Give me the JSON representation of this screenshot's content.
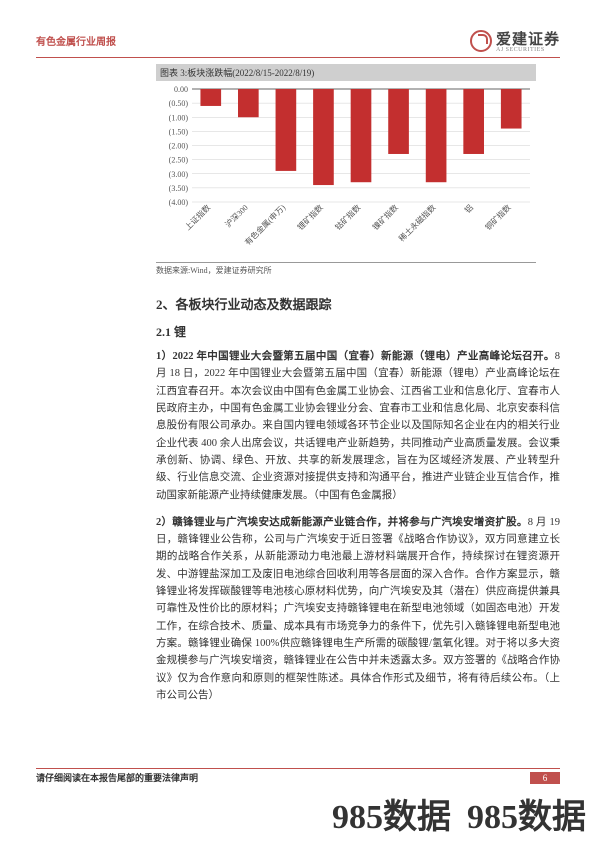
{
  "header": {
    "left": "有色金属行业周报",
    "logo_cn": "爱建证券",
    "logo_en": "AJ SECURITIES"
  },
  "chart": {
    "type": "bar",
    "title": "图表 3:板块涨跌幅(2022/8/15-2022/8/19)",
    "source": "数据来源:Wind，爱建证券研究所",
    "ylim": [
      -4.0,
      0.0
    ],
    "ytick_step": 0.5,
    "ylabels": [
      "0.00",
      "(0.50)",
      "(1.00)",
      "(1.50)",
      "(2.00)",
      "(2.50)",
      "(3.00)",
      "(3.50)",
      "(4.00)"
    ],
    "categories": [
      "上证指数",
      "沪深300",
      "有色金属(申万)",
      "锂矿指数",
      "钴矿指数",
      "镍矿指数",
      "稀土永磁指数",
      "铝",
      "铜矿指数"
    ],
    "values": [
      -0.6,
      -1.0,
      -2.9,
      -3.4,
      -3.3,
      -2.3,
      -3.3,
      -2.3,
      -1.4
    ],
    "bar_color": "#c32f2f",
    "grid_color": "#cfcfcf",
    "axis_color": "#666666",
    "label_fontsize": 8,
    "tick_fontsize": 8,
    "background_color": "#ffffff",
    "bar_width_ratio": 0.55
  },
  "sections": {
    "h2": "2、各板块行业动态及数据跟踪",
    "h21": "2.1 锂",
    "p1_lead": "1）2022 年中国锂业大会暨第五届中国（宜春）新能源（锂电）产业高峰论坛召开。",
    "p1": "8 月 18 日，2022 年中国锂业大会暨第五届中国（宜春）新能源（锂电）产业高峰论坛在江西宜春召开。本次会议由中国有色金属工业协会、江西省工业和信息化厅、宜春市人民政府主办，中国有色金属工业协会锂业分会、宜春市工业和信息化局、北京安泰科信息股份有限公司承办。来自国内锂电领域各环节企业以及国际知名企业在内的相关行业企业代表 400 余人出席会议，共话锂电产业新趋势，共同推动产业高质量发展。会议秉承创新、协调、绿色、开放、共享的新发展理念，旨在为区域经济发展、产业转型升级、行业信息交流、企业资源对接提供支持和沟通平台，推进产业链企业互信合作，推动国家新能源产业持续健康发展。（中国有色金属报）",
    "p2_lead": "2）赣锋锂业与广汽埃安达成新能源产业链合作，并将参与广汽埃安增资扩股。",
    "p2": "8 月 19 日，赣锋锂业公告称，公司与广汽埃安于近日签署《战略合作协议》，双方同意建立长期的战略合作关系，从新能源动力电池最上游材料端展开合作，持续探讨在锂资源开发、中游锂盐深加工及废旧电池综合回收利用等各层面的深入合作。合作方案显示，赣锋锂业将发挥碳酸锂等电池核心原材料优势，向广汽埃安及其（潜在）供应商提供兼具可靠性及性价比的原材料；广汽埃安支持赣锋锂电在新型电池领域（如固态电池）开发工作，在综合技术、质量、成本具有市场竞争力的条件下，优先引入赣锋锂电新型电池方案。赣锋锂业确保 100%供应赣锋锂电生产所需的碳酸锂/氢氧化锂。对于将以多大资金规模参与广汽埃安增资，赣锋锂业在公告中并未透露太多。双方签署的《战略合作协议》仅为合作意向和原则的框架性陈述。具体合作形式及细节，将有待后续公布。（上市公司公告）"
  },
  "footer": {
    "text": "请仔细阅读在本报告尾部的重要法律声明",
    "page": "6"
  },
  "watermark": {
    "a": "985数据",
    "b": "985数据"
  }
}
